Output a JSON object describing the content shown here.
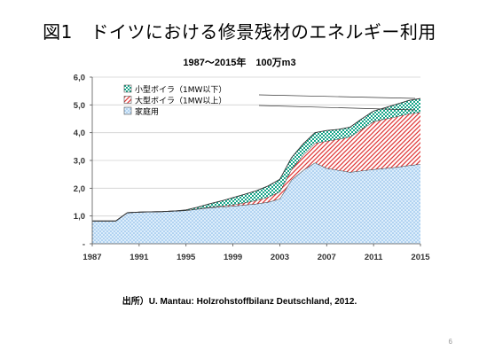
{
  "slide": {
    "title": "図1　ドイツにおける修景残材のエネルギー利用",
    "source": "出所）U. Mantau: Holzrohstoffbilanz Deutschland, 2012.",
    "page_number": "6"
  },
  "colors": {
    "household": "#b8d8f4",
    "large_boiler": "#e03a3a",
    "small_boiler": "#17a589"
  },
  "chart_data": {
    "type": "area",
    "stacked": true,
    "title": "1987〜2015年　100万m3",
    "xlabel": "",
    "ylabel": "",
    "x": [
      1987,
      1988,
      1989,
      1990,
      1991,
      1992,
      1993,
      1994,
      1995,
      1996,
      1997,
      1998,
      1999,
      2000,
      2001,
      2002,
      2003,
      2004,
      2005,
      2006,
      2007,
      2008,
      2009,
      2010,
      2011,
      2012,
      2013,
      2014,
      2015
    ],
    "xticks": [
      "1987",
      "1991",
      "1995",
      "1999",
      "2003",
      "2007",
      "2011",
      "2015"
    ],
    "xtick_values": [
      1987,
      1991,
      1995,
      1999,
      2003,
      2007,
      2011,
      2015
    ],
    "yticks": [
      "-",
      "1,0",
      "2,0",
      "3,0",
      "4,0",
      "5,0",
      "6,0"
    ],
    "ytick_values": [
      0,
      1,
      2,
      3,
      4,
      5,
      6
    ],
    "xlim": [
      1987,
      2015
    ],
    "ylim": [
      0,
      6
    ],
    "grid": "horizontal",
    "legend_position": "top-left",
    "series": [
      {
        "name": "家庭用",
        "key": "household",
        "values": [
          0.82,
          0.82,
          0.82,
          1.12,
          1.14,
          1.15,
          1.16,
          1.18,
          1.2,
          1.25,
          1.3,
          1.33,
          1.36,
          1.4,
          1.44,
          1.5,
          1.62,
          2.3,
          2.65,
          2.92,
          2.72,
          2.65,
          2.58,
          2.63,
          2.68,
          2.72,
          2.76,
          2.82,
          2.87
        ]
      },
      {
        "name": "大型ボイラ（1MW以上）",
        "key": "large_boiler",
        "values": [
          0,
          0,
          0,
          0,
          0,
          0,
          0,
          0,
          0,
          0.01,
          0.02,
          0.03,
          0.05,
          0.08,
          0.12,
          0.18,
          0.25,
          0.38,
          0.55,
          0.7,
          0.98,
          1.12,
          1.27,
          1.5,
          1.72,
          1.78,
          1.82,
          1.86,
          1.86
        ]
      },
      {
        "name": "小型ボイラ（1MW以下）",
        "key": "small_boiler",
        "values": [
          0,
          0,
          0,
          0,
          0,
          0,
          0,
          0,
          0.02,
          0.06,
          0.12,
          0.18,
          0.25,
          0.3,
          0.35,
          0.4,
          0.45,
          0.42,
          0.4,
          0.38,
          0.38,
          0.35,
          0.35,
          0.37,
          0.38,
          0.4,
          0.45,
          0.48,
          0.5
        ]
      }
    ],
    "legend_order": [
      "小型ボイラ（1MW以下）",
      "大型ボイラ（1MW以上）",
      "家庭用"
    ]
  }
}
